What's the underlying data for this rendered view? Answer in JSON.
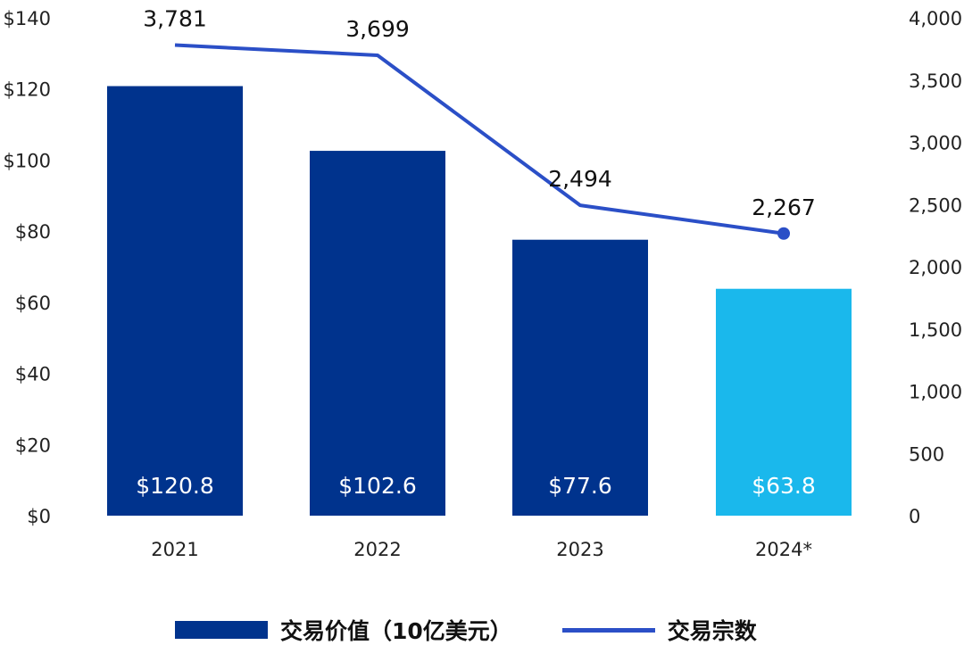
{
  "chart_data": {
    "type": "bar+line",
    "categories": [
      "2021",
      "2022",
      "2023",
      "2024*"
    ],
    "series": [
      {
        "name": "交易价值（10亿美元）",
        "type": "bar",
        "axis": "left",
        "values": [
          120.8,
          102.6,
          77.6,
          63.8
        ],
        "labels": [
          "$120.8",
          "$102.6",
          "$77.6",
          "$63.8"
        ],
        "colors": [
          "#00338d",
          "#00338d",
          "#00338d",
          "#1ab8ec"
        ]
      },
      {
        "name": "交易宗数",
        "type": "line",
        "axis": "right",
        "values": [
          3781,
          3699,
          2494,
          2267
        ],
        "labels": [
          "3,781",
          "3,699",
          "2,494",
          "2,267"
        ],
        "color": "#2b4fc7"
      }
    ],
    "left_axis": {
      "ylim": [
        0,
        140
      ],
      "ticks": [
        "$0",
        "$20",
        "$40",
        "$60",
        "$80",
        "$100",
        "$120",
        "$140"
      ]
    },
    "right_axis": {
      "ylim": [
        0,
        4000
      ],
      "ticks": [
        "0",
        "500",
        "1,000",
        "1,500",
        "2,000",
        "2,500",
        "3,000",
        "3,500",
        "4,000"
      ]
    },
    "grid": false,
    "legend": "bottom"
  },
  "legend": {
    "bar_label": "交易价值（10亿美元）",
    "line_label": "交易宗数"
  }
}
